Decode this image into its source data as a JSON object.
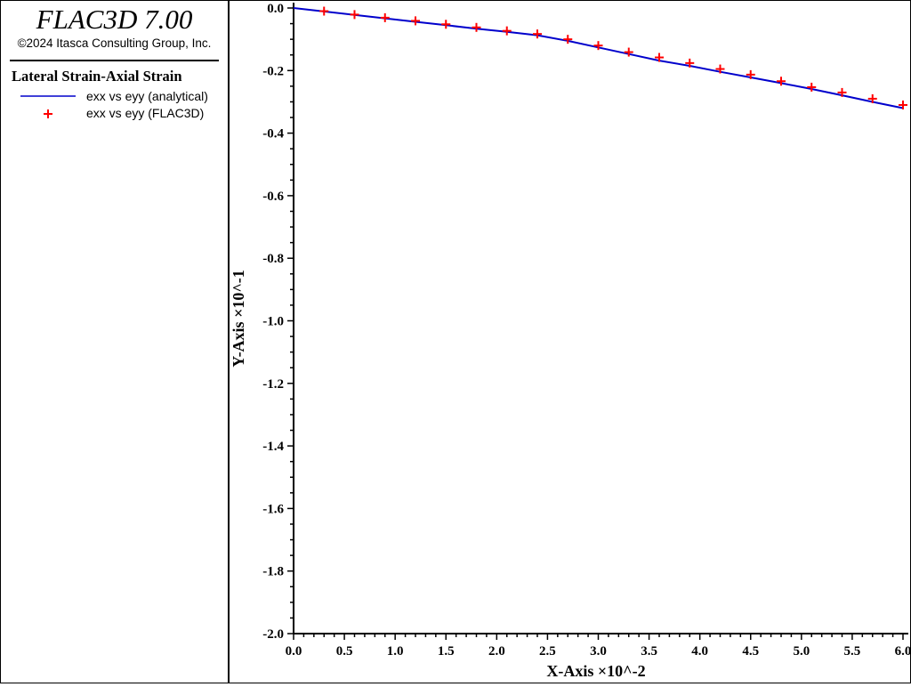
{
  "header": {
    "app_title": "FLAC3D 7.00",
    "copyright": "©2024 Itasca Consulting Group, Inc."
  },
  "legend": {
    "title": "Lateral Strain-Axial Strain",
    "items": [
      {
        "label": "exx vs eyy (analytical)",
        "style": "line",
        "color": "#0000cc"
      },
      {
        "label": "exx vs eyy (FLAC3D)",
        "style": "cross",
        "color": "#ff0000"
      }
    ]
  },
  "chart_data": {
    "type": "line",
    "xlabel": "X-Axis ×10^-2",
    "ylabel": "Y-Axis ×10^-1",
    "xlim": [
      0.0,
      6.0
    ],
    "ylim": [
      -2.0,
      0.0
    ],
    "x_ticks": [
      "0.0",
      "0.5",
      "1.0",
      "1.5",
      "2.0",
      "2.5",
      "3.0",
      "3.5",
      "4.0",
      "4.5",
      "5.0",
      "5.5",
      "6.0"
    ],
    "y_ticks": [
      "0.0",
      "-0.2",
      "-0.4",
      "-0.6",
      "-0.8",
      "-1.0",
      "-1.2",
      "-1.4",
      "-1.6",
      "-1.8",
      "-2.0"
    ],
    "grid": false,
    "series": [
      {
        "name": "exx vs eyy (analytical)",
        "style": "line",
        "color": "#0000cc",
        "x": [
          0.0,
          0.3,
          0.6,
          0.9,
          1.2,
          1.5,
          1.8,
          2.1,
          2.4,
          2.7,
          3.0,
          3.3,
          3.6,
          3.9,
          4.2,
          4.5,
          4.8,
          5.1,
          5.4,
          5.7,
          6.0
        ],
        "y": [
          0.0,
          -0.011,
          -0.022,
          -0.033,
          -0.044,
          -0.055,
          -0.066,
          -0.076,
          -0.087,
          -0.105,
          -0.126,
          -0.147,
          -0.168,
          -0.185,
          -0.204,
          -0.222,
          -0.24,
          -0.259,
          -0.279,
          -0.3,
          -0.32
        ]
      },
      {
        "name": "exx vs eyy (FLAC3D)",
        "style": "cross",
        "color": "#ff0000",
        "x": [
          0.3,
          0.6,
          0.9,
          1.2,
          1.5,
          1.8,
          2.1,
          2.4,
          2.7,
          3.0,
          3.3,
          3.6,
          3.9,
          4.2,
          4.5,
          4.8,
          5.1,
          5.4,
          5.7,
          6.0
        ],
        "y": [
          -0.01,
          -0.021,
          -0.031,
          -0.041,
          -0.052,
          -0.062,
          -0.073,
          -0.083,
          -0.1,
          -0.12,
          -0.141,
          -0.158,
          -0.176,
          -0.195,
          -0.213,
          -0.234,
          -0.253,
          -0.27,
          -0.29,
          -0.31
        ]
      }
    ]
  }
}
